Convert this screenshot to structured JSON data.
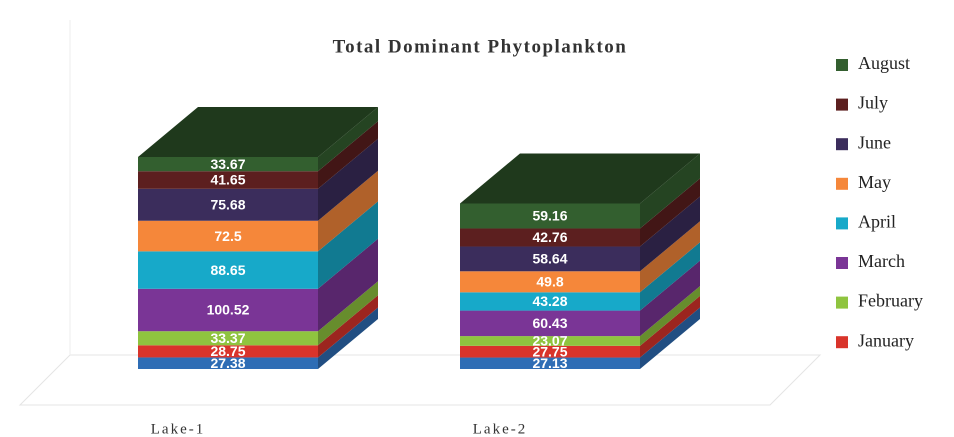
{
  "chart_data": {
    "type": "bar3d_stacked",
    "title": "Total Dominant Phytoplankton",
    "categories": [
      "Lake-1",
      "Lake-2"
    ],
    "series": [
      {
        "color": "#2e6db5",
        "values": [
          27.38,
          27.13
        ]
      },
      {
        "name": "January",
        "color": "#d9342b",
        "values": [
          28.75,
          27.75
        ]
      },
      {
        "name": "February",
        "color": "#8fc43f",
        "values": [
          33.37,
          23.07
        ]
      },
      {
        "name": "March",
        "color": "#7a3596",
        "values": [
          100.52,
          60.43
        ]
      },
      {
        "name": "April",
        "color": "#17a9c9",
        "values": [
          88.65,
          43.28
        ]
      },
      {
        "name": "May",
        "color": "#f5873a",
        "values": [
          72.5,
          49.8
        ]
      },
      {
        "name": "June",
        "color": "#3b2d5c",
        "values": [
          75.68,
          58.64
        ]
      },
      {
        "name": "July",
        "color": "#5c1f1f",
        "values": [
          41.65,
          42.76
        ]
      },
      {
        "name": "August",
        "color": "#335f2f",
        "values": [
          33.67,
          59.16
        ]
      }
    ],
    "legend": "right"
  }
}
